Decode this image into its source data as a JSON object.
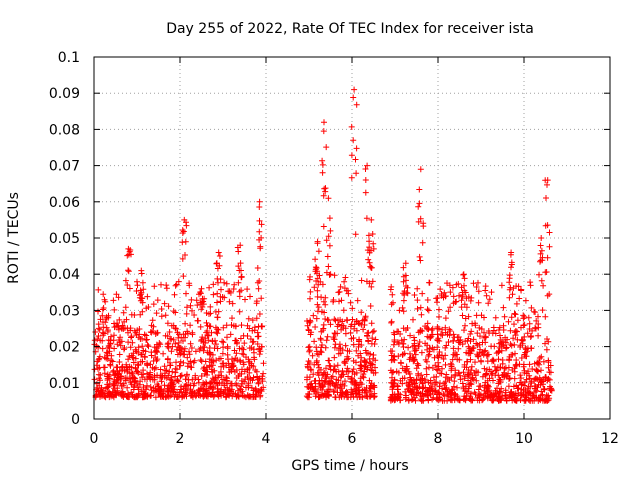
{
  "chart_data": {
    "type": "scatter",
    "title": "Day 255 of 2022, Rate Of TEC Index for receiver ista",
    "xlabel": "GPS time / hours",
    "ylabel": "ROTI / TECUs",
    "xlim": [
      0,
      12
    ],
    "ylim": [
      0,
      0.1
    ],
    "xticks": [
      "0",
      "2",
      "4",
      "6",
      "8",
      "10",
      "12"
    ],
    "yticks": [
      "0",
      "0.01",
      "0.02",
      "0.03",
      "0.04",
      "0.05",
      "0.06",
      "0.07",
      "0.08",
      "0.09",
      "0.1"
    ],
    "grid": true,
    "marker": "+",
    "color": "#ff0000",
    "series": [
      {
        "name": "ROTI",
        "clusters": [
          {
            "x": [
              0.0,
              3.95
            ],
            "y_base": [
              0.006,
              0.026
            ],
            "peaks": [
              [
                0.8,
                0.047
              ],
              [
                1.1,
                0.041
              ],
              [
                2.1,
                0.055
              ],
              [
                2.5,
                0.036
              ],
              [
                2.9,
                0.046
              ],
              [
                3.4,
                0.048
              ],
              [
                3.85,
                0.06
              ]
            ]
          },
          {
            "x": [
              4.95,
              6.55
            ],
            "y_base": [
              0.006,
              0.028
            ],
            "peaks": [
              [
                5.2,
                0.049
              ],
              [
                5.35,
                0.082
              ],
              [
                5.45,
                0.061
              ],
              [
                6.05,
                0.091
              ],
              [
                6.35,
                0.07
              ],
              [
                6.45,
                0.055
              ]
            ]
          },
          {
            "x": [
              6.9,
              10.65
            ],
            "y_base": [
              0.005,
              0.026
            ],
            "peaks": [
              [
                7.25,
                0.043
              ],
              [
                7.6,
                0.069
              ],
              [
                8.6,
                0.04
              ],
              [
                9.7,
                0.046
              ],
              [
                10.4,
                0.05
              ],
              [
                10.55,
                0.066
              ]
            ]
          }
        ]
      }
    ]
  }
}
